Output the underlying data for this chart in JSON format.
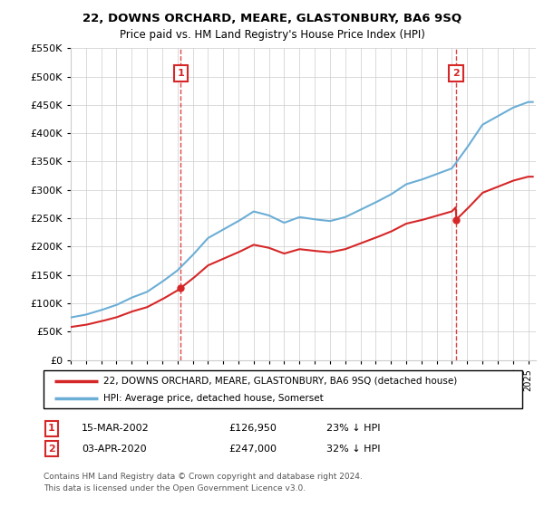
{
  "title": "22, DOWNS ORCHARD, MEARE, GLASTONBURY, BA6 9SQ",
  "subtitle": "Price paid vs. HM Land Registry's House Price Index (HPI)",
  "legend_line1": "22, DOWNS ORCHARD, MEARE, GLASTONBURY, BA6 9SQ (detached house)",
  "legend_line2": "HPI: Average price, detached house, Somerset",
  "marker1_date": "15-MAR-2002",
  "marker1_price": 126950,
  "marker1_label": "23% ↓ HPI",
  "marker1_x": 2002.21,
  "marker2_date": "03-APR-2020",
  "marker2_price": 247000,
  "marker2_label": "32% ↓ HPI",
  "marker2_x": 2020.26,
  "footnote1": "Contains HM Land Registry data © Crown copyright and database right 2024.",
  "footnote2": "This data is licensed under the Open Government Licence v3.0.",
  "ylim": [
    0,
    550000
  ],
  "xlim_start": 1995,
  "xlim_end": 2025.5,
  "hpi_color": "#6baed6",
  "price_color": "#d62728",
  "vline_color": "#d62728",
  "background_color": "#ffffff",
  "grid_color": "#cccccc",
  "hpi_years": [
    1995,
    1996,
    1997,
    1998,
    1999,
    2000,
    2001,
    2002,
    2003,
    2004,
    2005,
    2006,
    2007,
    2008,
    2009,
    2010,
    2011,
    2012,
    2013,
    2014,
    2015,
    2016,
    2017,
    2018,
    2019,
    2020,
    2021,
    2022,
    2023,
    2024,
    2025
  ],
  "hpi_values": [
    75000,
    80000,
    88000,
    97000,
    110000,
    120000,
    138000,
    158000,
    185000,
    215000,
    230000,
    245000,
    262000,
    255000,
    242000,
    252000,
    248000,
    245000,
    252000,
    265000,
    278000,
    292000,
    310000,
    318000,
    328000,
    338000,
    375000,
    415000,
    430000,
    445000,
    455000
  ],
  "marker1_price_paid": 126950,
  "marker2_price_paid": 247000
}
